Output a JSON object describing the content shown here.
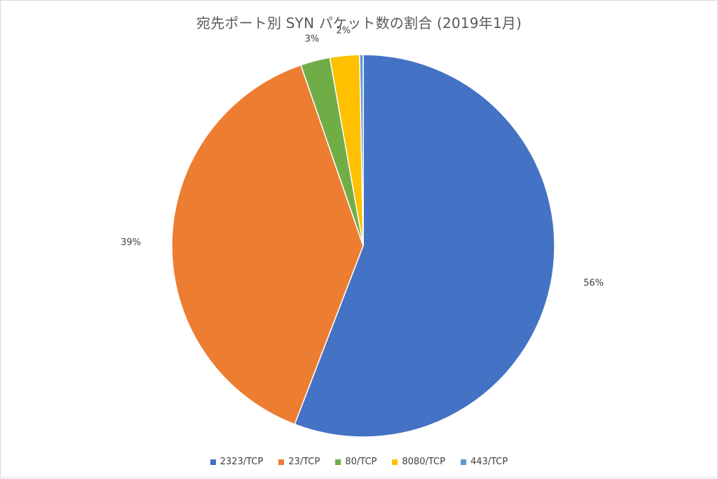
{
  "chart_data": {
    "type": "pie",
    "title": "宛先ポート別 SYN パケット数の割合 (2019年1月)",
    "categories": [
      "2323/TCP",
      "23/TCP",
      "80/TCP",
      "8080/TCP",
      "443/TCP"
    ],
    "values": [
      56,
      39,
      2.5,
      2.5,
      0.3
    ],
    "data_labels": [
      "56%",
      "39%",
      "3%",
      "2%",
      ""
    ],
    "colors": [
      "#4472C4",
      "#ED7D31",
      "#70AD47",
      "#FFC000",
      "#5B9BD5"
    ],
    "legend_position": "bottom",
    "start_angle_deg": 0,
    "direction": "clockwise"
  }
}
